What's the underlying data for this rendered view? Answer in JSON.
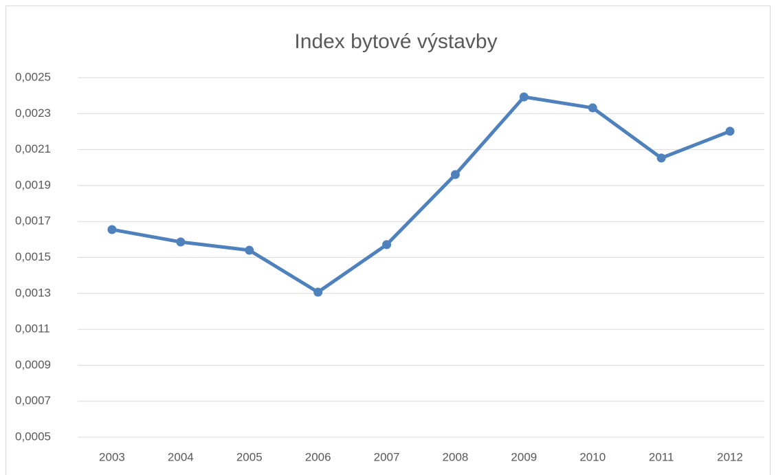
{
  "chart_data": {
    "type": "line",
    "title": "Index bytové výstavby",
    "categories": [
      "2003",
      "2004",
      "2005",
      "2006",
      "2007",
      "2008",
      "2009",
      "2010",
      "2011",
      "2012"
    ],
    "series": [
      {
        "color": "#4f81bd",
        "values": [
          0.001655,
          0.001586,
          0.00154,
          0.001307,
          0.001571,
          0.001961,
          0.002393,
          0.002332,
          0.002053,
          0.002202
        ]
      }
    ],
    "ylim": [
      0.0005,
      0.0025
    ],
    "yticks": [
      {
        "value": 0.0005,
        "label": "0,0005"
      },
      {
        "value": 0.0007,
        "label": "0,0007"
      },
      {
        "value": 0.0009,
        "label": "0,0009"
      },
      {
        "value": 0.0011,
        "label": "0,0011"
      },
      {
        "value": 0.0013,
        "label": "0,0013"
      },
      {
        "value": 0.0015,
        "label": "0,0015"
      },
      {
        "value": 0.0017,
        "label": "0,0017"
      },
      {
        "value": 0.0019,
        "label": "0,0019"
      },
      {
        "value": 0.0021,
        "label": "0,0021"
      },
      {
        "value": 0.0023,
        "label": "0,0023"
      },
      {
        "value": 0.0025,
        "label": "0,0025"
      }
    ],
    "grid": true
  }
}
